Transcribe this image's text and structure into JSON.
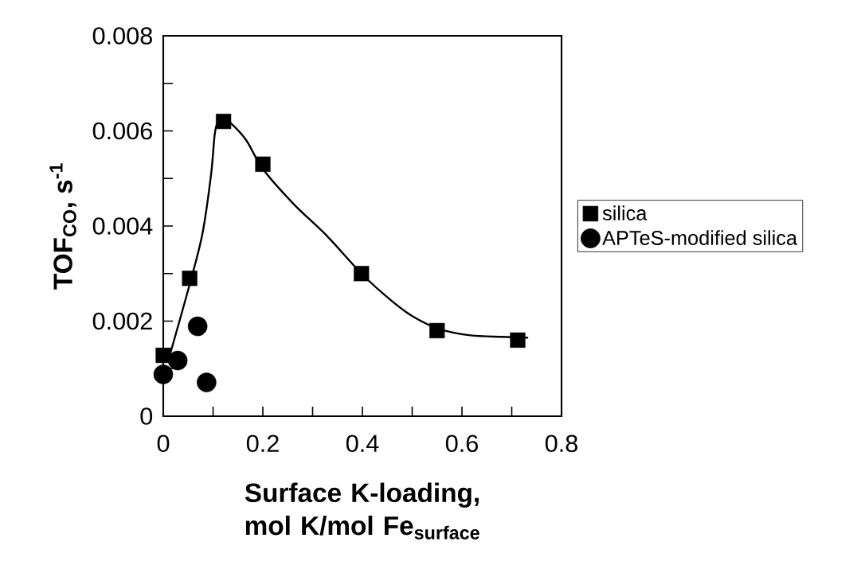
{
  "chart_data": {
    "type": "scatter",
    "xlabel": "Surface K-loading, mol K/mol Fe$_{surface}$",
    "ylabel": "TOF$_{CO}$, s$^{-1}$",
    "xlim": [
      0,
      0.8
    ],
    "ylim": [
      0,
      0.008
    ],
    "xticks": [
      0,
      {
        "value": 0.1,
        "label": null
      },
      0.2,
      {
        "value": 0.3,
        "label": null
      },
      0.4,
      {
        "value": 0.5,
        "label": null
      },
      0.6,
      {
        "value": 0.7,
        "label": null
      },
      0.8
    ],
    "yticks": [
      0,
      {
        "value": 0.001,
        "label": null
      },
      0.002,
      {
        "value": 0.003,
        "label": null
      },
      0.004,
      {
        "value": 0.005,
        "label": null
      },
      0.006,
      {
        "value": 0.007,
        "label": null
      },
      0.008
    ],
    "legend": "right",
    "grid": false,
    "series": [
      {
        "name": "silica",
        "marker": "square",
        "color": "#000000",
        "x": [
          0,
          0.053,
          0.121,
          0.2,
          0.398,
          0.55,
          0.712
        ],
        "values": [
          0.00128,
          0.0029,
          0.0062,
          0.0053,
          0.003,
          0.0018,
          0.0016
        ]
      },
      {
        "name": "APTeS-modified silica",
        "marker": "circle",
        "color": "#000000",
        "x": [
          0,
          0.029,
          0.069,
          0.087
        ],
        "values": [
          0.00088,
          0.00117,
          0.00189,
          0.00071
        ]
      },
      {
        "type": "line",
        "marker": "none",
        "color": "#000000",
        "x": [
          0.013,
          0.053,
          0.0785,
          0.096,
          0.103,
          0.109,
          0.122,
          0.135,
          0.167,
          0.2,
          0.263,
          0.328,
          0.398,
          0.456,
          0.501,
          0.553,
          0.617,
          0.681,
          0.733
        ],
        "values": [
          0.00128,
          0.00277,
          0.00383,
          0.00508,
          0.0059,
          0.00617,
          0.00623,
          0.00617,
          0.0058,
          0.0052,
          0.00445,
          0.0038,
          0.003,
          0.00245,
          0.0021,
          0.00184,
          0.0017,
          0.00167,
          0.00165
        ]
      }
    ]
  }
}
